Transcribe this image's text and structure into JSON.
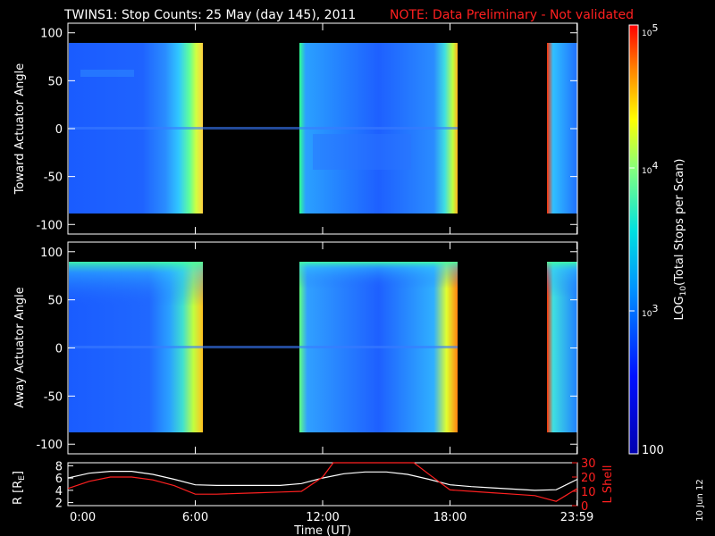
{
  "title": "TWINS1: Stop Counts: 25 May (day 145), 2011",
  "note": "NOTE: Data Preliminary - Not validated",
  "date_stamp": "10 Jun 12",
  "colors": {
    "note": "#ff2020",
    "orbit_r": "#ffffff",
    "orbit_l": "#ff2020",
    "background": "#000000"
  },
  "chart_data": [
    {
      "type": "heatmap",
      "ylabel": "Toward Actuator Angle",
      "ylim": [
        -110,
        110
      ],
      "yticks": [
        -100,
        -50,
        0,
        50,
        100
      ],
      "xlim": [
        0,
        24
      ],
      "data_gaps_hours": [
        [
          6.2,
          10.9
        ],
        [
          18.1,
          22.9
        ]
      ]
    },
    {
      "type": "heatmap",
      "ylabel": "Away Actuator Angle",
      "ylim": [
        -110,
        110
      ],
      "yticks": [
        -100,
        -50,
        0,
        50,
        100
      ],
      "xlim": [
        0,
        24
      ],
      "data_gaps_hours": [
        [
          6.2,
          10.9
        ],
        [
          18.1,
          22.9
        ]
      ]
    },
    {
      "type": "line",
      "xlabel": "Time (UT)",
      "xticks": [
        "0:00",
        "6:00",
        "12:00",
        "18:00",
        "23:59"
      ],
      "xtick_hours": [
        0,
        6,
        12,
        18,
        23.98
      ],
      "xlim": [
        0,
        24
      ],
      "ylabel": "R [R",
      "ylabel_sub": "E",
      "ylabel_close": "]",
      "ylim": [
        1.5,
        8.5
      ],
      "yticks": [
        "2",
        "4",
        "6",
        "8"
      ],
      "ylabel_right": "L Shell",
      "ylim_right": [
        0,
        30
      ],
      "yticks_right": [
        "0",
        "10",
        "20",
        "30"
      ],
      "series": [
        {
          "axis": "left",
          "color": "#ffffff",
          "x": [
            0,
            1,
            2,
            3,
            4,
            5,
            6,
            7,
            8,
            9,
            10,
            11,
            12,
            13,
            14,
            15,
            16,
            17,
            18,
            19,
            20,
            21,
            22,
            23,
            24
          ],
          "y": [
            6.0,
            6.8,
            7.1,
            7.1,
            6.6,
            5.8,
            4.9,
            4.8,
            4.8,
            4.8,
            4.8,
            5.1,
            6.0,
            6.7,
            7.0,
            7.0,
            6.6,
            5.8,
            4.9,
            4.6,
            4.4,
            4.2,
            4.0,
            4.1,
            5.8
          ]
        },
        {
          "axis": "right",
          "x": [
            0,
            1,
            2,
            3,
            4,
            5,
            6,
            7,
            8,
            9,
            10,
            11,
            12,
            12.5,
            16.3,
            17,
            18,
            19,
            20,
            21,
            22,
            23,
            24
          ],
          "y": [
            12,
            17,
            20,
            20,
            18,
            14,
            8,
            8,
            8.5,
            9,
            9.5,
            10,
            20,
            30,
            30,
            22,
            11,
            10,
            9,
            8,
            7,
            3,
            12
          ]
        }
      ]
    }
  ],
  "colorbar": {
    "label_prefix": "LOG",
    "label_sub": "10",
    "label_suffix": "(Total Stops per Scan)",
    "ticks": [
      {
        "base": "10",
        "exp": "5",
        "value": 100000
      },
      {
        "base": "10",
        "exp": "4",
        "value": 10000
      },
      {
        "base": "10",
        "exp": "3",
        "value": 1000
      },
      {
        "base": "",
        "exp": "",
        "label": "100",
        "value": 100
      }
    ],
    "range": [
      100,
      100000
    ],
    "scale": "log"
  }
}
